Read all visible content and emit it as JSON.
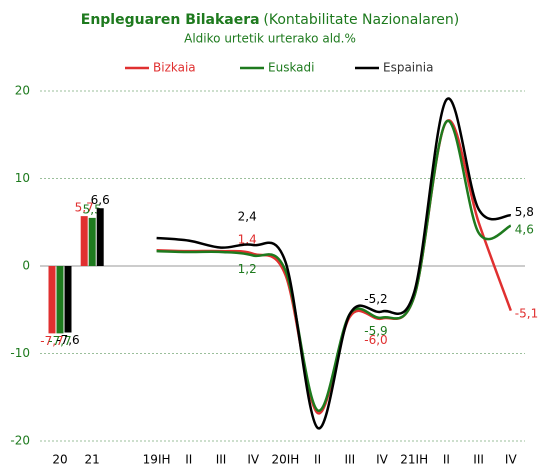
{
  "chart_data": [
    {
      "type": "bar",
      "title": "Enpleguaren Bilakaera",
      "title_note": "(Kontabilitate Nazionalaren)",
      "subtitle": "Aldiko urtetik urterako ald.%",
      "categories": [
        "20",
        "21"
      ],
      "ylim": [
        -20,
        20
      ],
      "yticks": [
        -20,
        -10,
        0,
        10,
        20
      ],
      "grid": true,
      "series": [
        {
          "color": "#e03030",
          "values": [
            -7.7,
            5.7
          ],
          "value_labels": [
            "-7,7",
            "5,7"
          ]
        },
        {
          "color": "#1e7a1e",
          "values": [
            -7.7,
            5.5
          ],
          "value_labels": [
            "-7,7",
            "5,5"
          ]
        },
        {
          "color": "#000000",
          "values": [
            -7.6,
            6.6
          ],
          "value_labels": [
            "-7,6",
            "6,6"
          ]
        }
      ]
    },
    {
      "type": "line",
      "categories": [
        "19IH",
        "II",
        "III",
        "IV",
        "20IH",
        "II",
        "III",
        "IV",
        "21IH",
        "II",
        "III",
        "IV"
      ],
      "legend": "top",
      "series": [
        {
          "name": "Bizkaia",
          "color": "#e03030",
          "values": [
            1.8,
            1.7,
            1.7,
            1.4,
            -1.0,
            -16.8,
            -5.8,
            -6.0,
            -3.5,
            16.5,
            5.0,
            -5.1
          ],
          "value_labels": [
            null,
            null,
            null,
            "1,4",
            null,
            null,
            null,
            "-6,0",
            null,
            null,
            null,
            "-5,1"
          ]
        },
        {
          "name": "Euskadi",
          "color": "#1e7a1e",
          "values": [
            1.7,
            1.6,
            1.6,
            1.2,
            -0.5,
            -16.5,
            -5.5,
            -5.9,
            -3.5,
            16.5,
            3.8,
            4.6
          ],
          "value_labels": [
            null,
            null,
            null,
            "1,2",
            null,
            null,
            null,
            "-5,9",
            null,
            null,
            null,
            "4,6"
          ]
        },
        {
          "name": "Espainia",
          "color": "#000000",
          "values": [
            3.2,
            2.9,
            2.1,
            2.4,
            0.5,
            -18.5,
            -5.5,
            -5.2,
            -3.0,
            19.0,
            6.5,
            5.8
          ],
          "value_labels": [
            null,
            null,
            null,
            "2,4",
            null,
            null,
            null,
            "-5,2",
            null,
            null,
            null,
            "5,8"
          ]
        }
      ]
    }
  ]
}
